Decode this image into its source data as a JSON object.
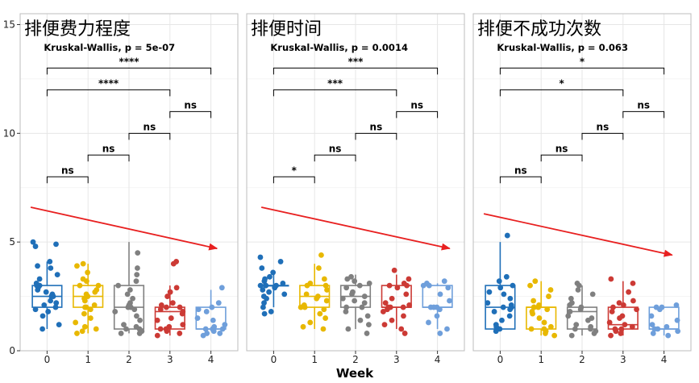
{
  "xlabel": "Week",
  "colors": {
    "week0": "#1f6fb8",
    "week1": "#e8b800",
    "week2": "#808080",
    "week3": "#cc3a35",
    "week4": "#6f9fdb",
    "trend_arrow": "#e82020",
    "bracket": "#000000",
    "panel_bg": "#ffffff",
    "grid": "#e6e6e6",
    "panel_border": "#bdbdbd"
  },
  "chart_data": [
    {
      "type": "box",
      "title": "排便费力程度",
      "subtitle": "Kruskal-Wallis, p = 5e-07",
      "xlabel": "Week",
      "ylabel": "",
      "categories": [
        "0",
        "1",
        "2",
        "3",
        "4"
      ],
      "ylim": [
        0,
        15.5
      ],
      "yticks": [
        0,
        5,
        10,
        15
      ],
      "grid": true,
      "boxes": [
        {
          "category": "0",
          "whisker_low": 1.0,
          "q1": 2.0,
          "median": 2.5,
          "q3": 3.0,
          "whisker_high": 4.1
        },
        {
          "category": "1",
          "whisker_low": 0.8,
          "q1": 2.0,
          "median": 2.5,
          "q3": 3.0,
          "whisker_high": 4.0
        },
        {
          "category": "2",
          "whisker_low": 0.8,
          "q1": 1.0,
          "median": 2.0,
          "q3": 3.0,
          "whisker_high": 5.0
        },
        {
          "category": "3",
          "whisker_low": 0.7,
          "q1": 1.0,
          "median": 1.8,
          "q3": 2.0,
          "whisker_high": 3.0
        },
        {
          "category": "4",
          "whisker_low": 1.0,
          "q1": 1.0,
          "median": 1.0,
          "q3": 2.0,
          "whisker_high": 2.8
        }
      ],
      "points": [
        [
          5.0,
          4.9,
          4.8,
          4.1,
          3.9,
          3.8,
          3.5,
          3.3,
          3.1,
          3.0,
          3.0,
          2.9,
          2.8,
          2.7,
          2.6,
          2.5,
          2.5,
          2.3,
          2.2,
          2.1,
          2.0,
          1.9,
          1.8,
          1.6,
          1.2,
          1.0
        ],
        [
          4.0,
          3.9,
          3.6,
          3.3,
          3.2,
          3.0,
          3.0,
          2.8,
          2.7,
          2.6,
          2.5,
          2.4,
          2.3,
          2.1,
          2.0,
          2.0,
          1.9,
          1.7,
          1.5,
          1.3,
          1.1,
          1.0,
          0.9,
          0.8
        ],
        [
          4.5,
          3.8,
          3.5,
          3.2,
          3.0,
          2.8,
          2.6,
          2.4,
          2.2,
          2.1,
          2.0,
          2.0,
          1.9,
          1.8,
          1.6,
          1.4,
          1.2,
          1.1,
          1.0,
          1.0,
          0.9,
          0.8,
          0.8
        ],
        [
          4.1,
          4.0,
          2.9,
          2.7,
          2.5,
          2.2,
          2.1,
          2.0,
          2.0,
          1.9,
          1.8,
          1.7,
          1.5,
          1.4,
          1.2,
          1.1,
          1.0,
          1.0,
          0.9,
          0.8,
          0.7
        ],
        [
          2.9,
          2.2,
          2.0,
          1.9,
          1.8,
          1.5,
          1.4,
          1.2,
          1.1,
          1.0,
          1.0,
          1.0,
          0.9,
          0.8,
          0.8,
          0.7
        ]
      ],
      "comparisons": [
        {
          "group1": "0",
          "group2": "1",
          "y": 8.0,
          "label": "ns"
        },
        {
          "group1": "1",
          "group2": "2",
          "y": 9.0,
          "label": "ns"
        },
        {
          "group1": "2",
          "group2": "3",
          "y": 10.0,
          "label": "ns"
        },
        {
          "group1": "3",
          "group2": "4",
          "y": 11.0,
          "label": "ns"
        },
        {
          "group1": "0",
          "group2": "3",
          "y": 12.0,
          "label": "****"
        },
        {
          "group1": "0",
          "group2": "4",
          "y": 13.0,
          "label": "****"
        }
      ],
      "trend": {
        "from": [
          -0.4,
          6.6
        ],
        "to": [
          4.15,
          4.7
        ]
      }
    },
    {
      "type": "box",
      "title": "排便时间",
      "subtitle": "Kruskal-Wallis, p = 0.0014",
      "xlabel": "Week",
      "ylabel": "",
      "categories": [
        "0",
        "1",
        "2",
        "3",
        "4"
      ],
      "ylim": [
        0,
        15.5
      ],
      "yticks": [
        0,
        5,
        10,
        15
      ],
      "grid": true,
      "boxes": [
        {
          "category": "0",
          "whisker_low": 2.0,
          "q1": 3.0,
          "median": 3.0,
          "q3": 3.0,
          "whisker_high": 3.5
        },
        {
          "category": "1",
          "whisker_low": 1.0,
          "q1": 2.0,
          "median": 2.5,
          "q3": 3.0,
          "whisker_high": 4.0
        },
        {
          "category": "2",
          "whisker_low": 1.0,
          "q1": 2.0,
          "median": 2.5,
          "q3": 3.0,
          "whisker_high": 3.5
        },
        {
          "category": "3",
          "whisker_low": 1.0,
          "q1": 2.0,
          "median": 2.0,
          "q3": 3.0,
          "whisker_high": 3.5
        },
        {
          "category": "4",
          "whisker_low": 1.0,
          "q1": 2.0,
          "median": 2.0,
          "q3": 3.0,
          "whisker_high": 3.1
        }
      ],
      "points": [
        [
          4.3,
          4.1,
          3.8,
          3.6,
          3.4,
          3.3,
          3.2,
          3.1,
          3.0,
          3.0,
          3.0,
          3.0,
          2.9,
          2.8,
          2.7,
          2.6,
          2.5,
          2.4,
          2.2,
          2.0,
          1.8,
          1.7
        ],
        [
          4.4,
          3.8,
          3.3,
          3.1,
          3.0,
          3.0,
          2.8,
          2.6,
          2.5,
          2.4,
          2.3,
          2.1,
          2.0,
          2.0,
          1.9,
          1.7,
          1.5,
          1.3,
          1.1,
          1.0
        ],
        [
          3.4,
          3.3,
          3.2,
          3.1,
          3.0,
          2.9,
          2.7,
          2.6,
          2.5,
          2.4,
          2.3,
          2.2,
          2.0,
          2.0,
          1.8,
          1.6,
          1.4,
          1.2,
          1.0,
          0.8
        ],
        [
          3.7,
          3.3,
          3.1,
          3.0,
          3.0,
          2.9,
          2.6,
          2.4,
          2.2,
          2.1,
          2.0,
          2.0,
          2.0,
          1.9,
          1.8,
          1.6,
          1.4,
          1.2,
          1.0,
          0.8
        ],
        [
          3.2,
          3.1,
          3.0,
          3.0,
          2.9,
          2.6,
          2.3,
          2.0,
          2.0,
          2.0,
          1.9,
          1.6,
          1.3,
          1.0,
          0.8
        ]
      ],
      "comparisons": [
        {
          "group1": "0",
          "group2": "1",
          "y": 8.0,
          "label": "*"
        },
        {
          "group1": "1",
          "group2": "2",
          "y": 9.0,
          "label": "ns"
        },
        {
          "group1": "2",
          "group2": "3",
          "y": 10.0,
          "label": "ns"
        },
        {
          "group1": "3",
          "group2": "4",
          "y": 11.0,
          "label": "ns"
        },
        {
          "group1": "0",
          "group2": "3",
          "y": 12.0,
          "label": "***"
        },
        {
          "group1": "0",
          "group2": "4",
          "y": 13.0,
          "label": "***"
        }
      ],
      "trend": {
        "from": [
          -0.3,
          6.6
        ],
        "to": [
          4.3,
          4.7
        ]
      }
    },
    {
      "type": "box",
      "title": "排便不成功次数",
      "subtitle": "Kruskal-Wallis, p = 0.063",
      "xlabel": "Week",
      "ylabel": "",
      "categories": [
        "0",
        "1",
        "2",
        "3",
        "4"
      ],
      "ylim": [
        0,
        15.5
      ],
      "yticks": [
        0,
        5,
        10,
        15
      ],
      "grid": true,
      "boxes": [
        {
          "category": "0",
          "whisker_low": 1.0,
          "q1": 1.0,
          "median": 2.0,
          "q3": 3.0,
          "whisker_high": 5.0
        },
        {
          "category": "1",
          "whisker_low": 0.7,
          "q1": 1.0,
          "median": 2.0,
          "q3": 2.0,
          "whisker_high": 3.2
        },
        {
          "category": "2",
          "whisker_low": 0.7,
          "q1": 1.0,
          "median": 1.8,
          "q3": 2.0,
          "whisker_high": 3.0
        },
        {
          "category": "3",
          "whisker_low": 0.7,
          "q1": 1.0,
          "median": 1.2,
          "q3": 2.0,
          "whisker_high": 3.2
        },
        {
          "category": "4",
          "whisker_low": 0.7,
          "q1": 1.0,
          "median": 1.0,
          "q3": 2.0,
          "whisker_high": 2.0
        }
      ],
      "points": [
        [
          5.3,
          3.4,
          3.2,
          3.0,
          2.9,
          2.7,
          2.6,
          2.4,
          2.2,
          2.1,
          2.0,
          2.0,
          1.9,
          1.8,
          1.6,
          1.4,
          1.2,
          1.1,
          1.0,
          0.9
        ],
        [
          3.2,
          3.0,
          2.8,
          2.5,
          2.3,
          2.1,
          2.0,
          2.0,
          2.0,
          1.9,
          1.8,
          1.7,
          1.5,
          1.3,
          1.1,
          1.0,
          1.0,
          0.9,
          0.8,
          0.7
        ],
        [
          3.1,
          3.0,
          2.8,
          2.6,
          2.4,
          2.2,
          2.1,
          2.0,
          1.9,
          1.8,
          1.6,
          1.5,
          1.4,
          1.2,
          1.1,
          1.0,
          1.0,
          0.9,
          0.8,
          0.7
        ],
        [
          3.3,
          3.1,
          2.7,
          2.3,
          2.2,
          2.1,
          2.0,
          1.9,
          1.8,
          1.6,
          1.5,
          1.3,
          1.2,
          1.1,
          1.0,
          1.0,
          0.9,
          0.8,
          0.7
        ],
        [
          2.1,
          2.0,
          2.0,
          1.9,
          1.6,
          1.4,
          1.2,
          1.1,
          1.0,
          1.0,
          0.9,
          0.8,
          0.7
        ]
      ],
      "comparisons": [
        {
          "group1": "0",
          "group2": "1",
          "y": 8.0,
          "label": "ns"
        },
        {
          "group1": "1",
          "group2": "2",
          "y": 9.0,
          "label": "ns"
        },
        {
          "group1": "2",
          "group2": "3",
          "y": 10.0,
          "label": "ns"
        },
        {
          "group1": "3",
          "group2": "4",
          "y": 11.0,
          "label": "ns"
        },
        {
          "group1": "0",
          "group2": "3",
          "y": 12.0,
          "label": "*"
        },
        {
          "group1": "0",
          "group2": "4",
          "y": 13.0,
          "label": "*"
        }
      ],
      "trend": {
        "from": [
          -0.4,
          6.3
        ],
        "to": [
          4.2,
          4.4
        ]
      }
    }
  ]
}
